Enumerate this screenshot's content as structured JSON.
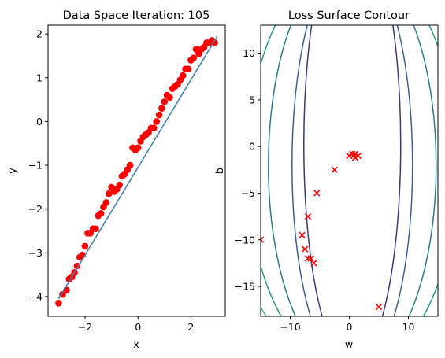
{
  "chart_data": [
    {
      "type": "scatter",
      "title": "Data Space Iteration: 105",
      "xlabel": "x",
      "ylabel": "y",
      "xlim": [
        -3.4,
        3.3
      ],
      "ylim": [
        -4.45,
        2.2
      ],
      "xticks": [
        -2,
        0,
        2
      ],
      "yticks": [
        -4,
        -3,
        -2,
        -1,
        0,
        1,
        2
      ],
      "fit_line": {
        "slope": 1.0,
        "intercept": -1.05,
        "x_range": [
          -3.0,
          3.0
        ],
        "color": "#4682b4"
      },
      "points": {
        "color": "#ff0000",
        "x": [
          -3.0,
          -2.85,
          -2.7,
          -2.6,
          -2.5,
          -2.4,
          -2.3,
          -2.2,
          -2.1,
          -2.0,
          -1.9,
          -1.8,
          -1.7,
          -1.6,
          -1.5,
          -1.4,
          -1.3,
          -1.2,
          -1.1,
          -1.0,
          -0.9,
          -0.8,
          -0.7,
          -0.6,
          -0.5,
          -0.4,
          -0.3,
          -0.2,
          -0.1,
          0.0,
          0.1,
          0.2,
          0.3,
          0.4,
          0.5,
          0.6,
          0.7,
          0.8,
          0.9,
          1.0,
          1.1,
          1.2,
          1.3,
          1.4,
          1.5,
          1.6,
          1.7,
          1.8,
          1.9,
          2.0,
          2.1,
          2.2,
          2.3,
          2.4,
          2.5,
          2.6,
          2.7,
          2.8,
          2.9
        ],
        "y": [
          -4.15,
          -3.95,
          -3.85,
          -3.6,
          -3.55,
          -3.45,
          -3.3,
          -3.1,
          -3.05,
          -2.85,
          -2.55,
          -2.55,
          -2.45,
          -2.45,
          -2.15,
          -2.1,
          -1.95,
          -1.85,
          -1.65,
          -1.5,
          -1.6,
          -1.55,
          -1.45,
          -1.25,
          -1.2,
          -1.1,
          -1.0,
          -0.6,
          -0.65,
          -0.6,
          -0.45,
          -0.35,
          -0.3,
          -0.25,
          -0.15,
          -0.15,
          0.0,
          0.15,
          0.3,
          0.45,
          0.6,
          0.55,
          0.75,
          0.8,
          0.85,
          0.95,
          1.05,
          1.2,
          1.2,
          1.4,
          1.45,
          1.65,
          1.55,
          1.65,
          1.7,
          1.8,
          1.8,
          1.85,
          1.8
        ]
      }
    },
    {
      "type": "contour",
      "title": "Loss Surface Contour",
      "xlabel": "w",
      "ylabel": "b",
      "xlim": [
        -15,
        15
      ],
      "ylim": [
        -18.2,
        13
      ],
      "xticks": [
        -10,
        0,
        10
      ],
      "yticks": [
        -15,
        -10,
        -5,
        0,
        5,
        10
      ],
      "contours": [
        {
          "level": 1,
          "a": 8.2,
          "b": 23.5,
          "cx": 0.5,
          "cy": 0.2,
          "color": "#3b3a7e"
        },
        {
          "level": 2,
          "a": 10.2,
          "b": 22.5,
          "cx": 0.5,
          "cy": -2,
          "color": "#3d5f8c"
        },
        {
          "level": 3,
          "a": 14.2,
          "b": 22,
          "cx": 0.5,
          "cy": -2,
          "color": "#2c7b8b"
        },
        {
          "level": 4,
          "a": 17.8,
          "b": 22,
          "cx": 0.5,
          "cy": -2,
          "color": "#249a87"
        },
        {
          "level": 5,
          "a": 21.5,
          "b": 22,
          "cx": 0.5,
          "cy": -2,
          "color": "#3fb872"
        }
      ],
      "path_markers": {
        "color": "#ff0000",
        "w": [
          5.0,
          -6.0,
          -6.5,
          -7.0,
          -7.5,
          -7.0,
          -8.0,
          -15.0,
          -5.5,
          -2.5,
          0.0,
          0.5,
          1.0,
          1.5,
          1.0,
          0.8
        ],
        "b": [
          -17.2,
          -12.5,
          -12.0,
          -12.0,
          -11.0,
          -7.5,
          -9.5,
          -10.0,
          -5.0,
          -2.5,
          -1.0,
          -0.8,
          -0.8,
          -1.0,
          -1.2,
          -0.9
        ]
      }
    }
  ]
}
